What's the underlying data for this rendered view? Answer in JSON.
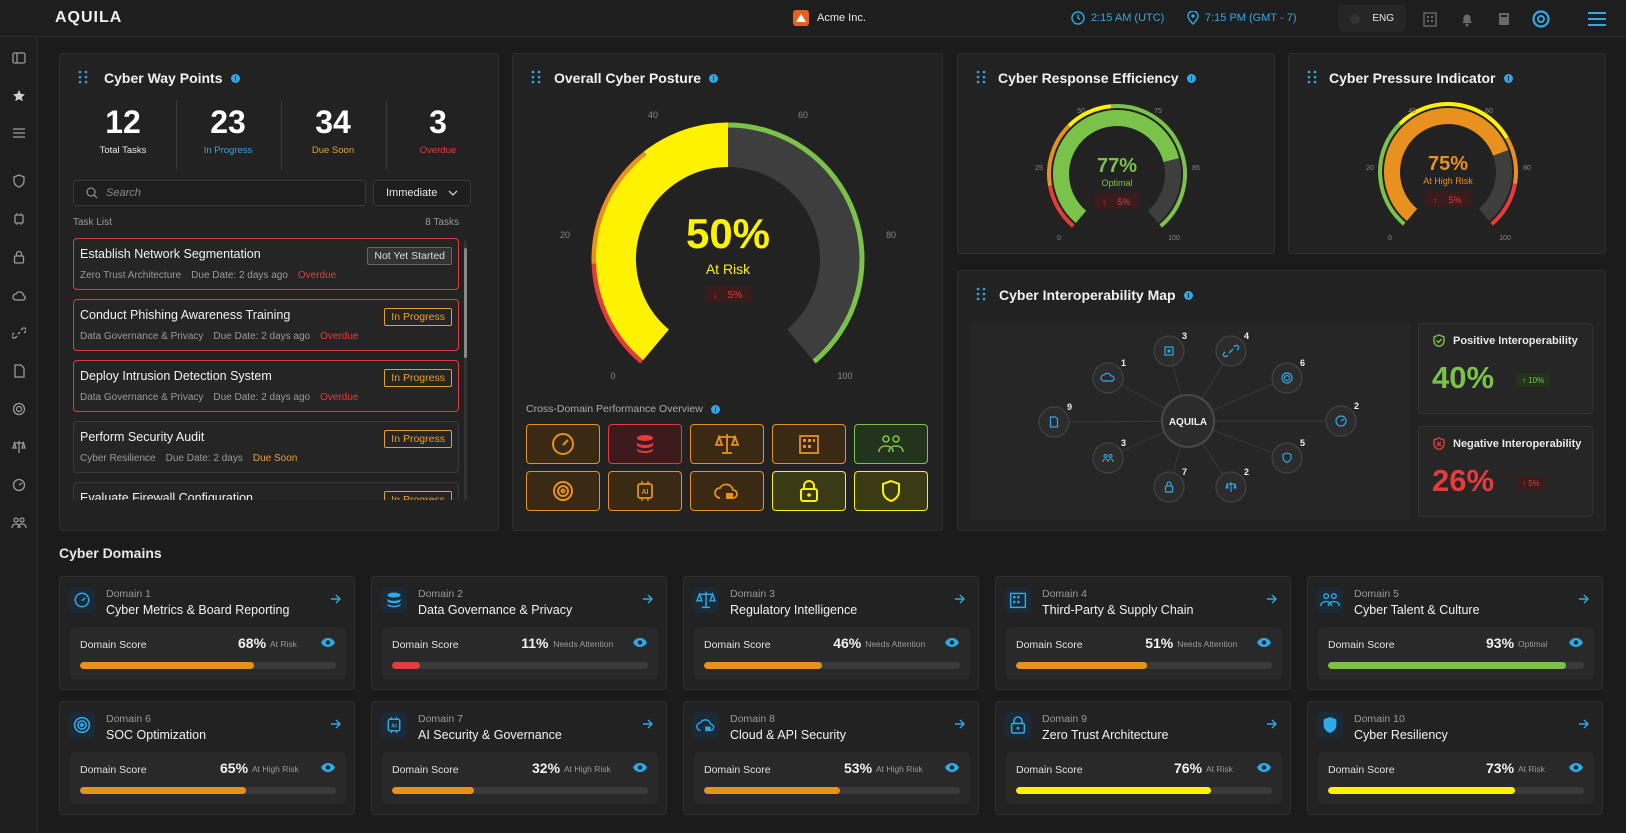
{
  "app": {
    "logo": "AQUILA",
    "org": "Acme Inc.",
    "utc_time": "2:15 AM (UTC)",
    "local_time": "7:15 PM (GMT - 7)",
    "lang": "ENG"
  },
  "colors": {
    "accent": "#2fa8e6",
    "green": "#7bc24a",
    "yellow": "#fff200",
    "orange": "#e8911e",
    "red": "#e83a3a"
  },
  "waypoints": {
    "title": "Cyber Way Points",
    "stats": [
      {
        "value": "12",
        "label": "Total Tasks"
      },
      {
        "value": "23",
        "label": "In Progress"
      },
      {
        "value": "34",
        "label": "Due Soon"
      },
      {
        "value": "3",
        "label": "Overdue"
      }
    ],
    "search_placeholder": "Search",
    "filter": "Immediate",
    "list_label": "Task List",
    "list_count": "8 Tasks",
    "tasks": [
      {
        "title": "Establish Network Segmentation",
        "domain": "Zero Trust Architecture",
        "due": "Due Date: 2 days ago",
        "flag": "Overdue",
        "status": "Not Yet Started"
      },
      {
        "title": "Conduct Phishing Awareness Training",
        "domain": "Data Governance & Privacy",
        "due": "Due Date: 2 days ago",
        "flag": "Overdue",
        "status": "In Progress"
      },
      {
        "title": "Deploy Intrusion Detection System",
        "domain": "Data Governance & Privacy",
        "due": "Due Date: 2 days ago",
        "flag": "Overdue",
        "status": "In Progress"
      },
      {
        "title": "Perform Security Audit",
        "domain": "Cyber Resilience",
        "due": "Due Date: 2 days",
        "flag": "Due Soon",
        "status": "In Progress"
      },
      {
        "title": "Evaluate Firewall Configuration",
        "domain": "",
        "due": "",
        "flag": "",
        "status": "In Progress"
      }
    ]
  },
  "posture": {
    "title": "Overall Cyber Posture",
    "value": "50%",
    "value_num": 50,
    "status": "At Risk",
    "delta": "5%",
    "ticks": [
      "0",
      "20",
      "40",
      "60",
      "80",
      "100"
    ],
    "overview_label": "Cross-Domain Performance Overview"
  },
  "response": {
    "title": "Cyber Response Efficiency",
    "value": "77%",
    "value_num": 77,
    "status": "Optimal",
    "delta": "5%",
    "ticks": [
      "0",
      "25",
      "50",
      "75",
      "85",
      "100"
    ]
  },
  "pressure": {
    "title": "Cyber Pressure Indicator",
    "value": "75%",
    "value_num": 75,
    "status": "At High Risk",
    "delta": "5%",
    "ticks": [
      "0",
      "20",
      "40",
      "60",
      "80",
      "100"
    ]
  },
  "interop": {
    "title": "Cyber Interoperability Map",
    "center": "AQUILA",
    "nodes": [
      {
        "icon": "cloud-icon",
        "count": "1"
      },
      {
        "icon": "chip-icon",
        "count": "3"
      },
      {
        "icon": "link-icon",
        "count": "4"
      },
      {
        "icon": "target-icon",
        "count": "6"
      },
      {
        "icon": "gauge-icon",
        "count": "2"
      },
      {
        "icon": "shield-icon",
        "count": "5"
      },
      {
        "icon": "scale-icon",
        "count": "2"
      },
      {
        "icon": "lock-icon",
        "count": "7"
      },
      {
        "icon": "people-icon",
        "count": "3"
      },
      {
        "icon": "document-icon",
        "count": "9"
      }
    ],
    "positive": {
      "label": "Positive Interoperability",
      "value": "40%",
      "delta": "10%"
    },
    "negative": {
      "label": "Negative Interoperability",
      "value": "26%",
      "delta": "5%"
    }
  },
  "domains_title": "Cyber Domains",
  "score_label": "Domain Score",
  "domains": [
    {
      "num": "Domain 1",
      "name": "Cyber Metrics & Board Reporting",
      "score": "68%",
      "score_num": 68,
      "status": "At Risk",
      "color": "#e8911e"
    },
    {
      "num": "Domain 2",
      "name": "Data Governance & Privacy",
      "score": "11%",
      "score_num": 11,
      "status": "Needs Attention",
      "color": "#e83a3a"
    },
    {
      "num": "Domain 3",
      "name": "Regulatory Intelligence",
      "score": "46%",
      "score_num": 46,
      "status": "Needs Attention",
      "color": "#e8911e"
    },
    {
      "num": "Domain 4",
      "name": "Third-Party & Supply Chain",
      "score": "51%",
      "score_num": 51,
      "status": "Needs Attention",
      "color": "#e8911e"
    },
    {
      "num": "Domain 5",
      "name": "Cyber Talent & Culture",
      "score": "93%",
      "score_num": 93,
      "status": "Optimal",
      "color": "#7bc24a"
    },
    {
      "num": "Domain 6",
      "name": "SOC Optimization",
      "score": "65%",
      "score_num": 65,
      "status": "At High Risk",
      "color": "#e8911e"
    },
    {
      "num": "Domain 7",
      "name": "AI Security & Governance",
      "score": "32%",
      "score_num": 32,
      "status": "At High Risk",
      "color": "#e8911e"
    },
    {
      "num": "Domain 8",
      "name": "Cloud & API Security",
      "score": "53%",
      "score_num": 53,
      "status": "At High Risk",
      "color": "#e8911e"
    },
    {
      "num": "Domain 9",
      "name": "Zero Trust Architecture",
      "score": "76%",
      "score_num": 76,
      "status": "At Risk",
      "color": "#fff200"
    },
    {
      "num": "Domain 10",
      "name": "Cyber Resiliency",
      "score": "73%",
      "score_num": 73,
      "status": "At Risk",
      "color": "#fff200"
    }
  ]
}
